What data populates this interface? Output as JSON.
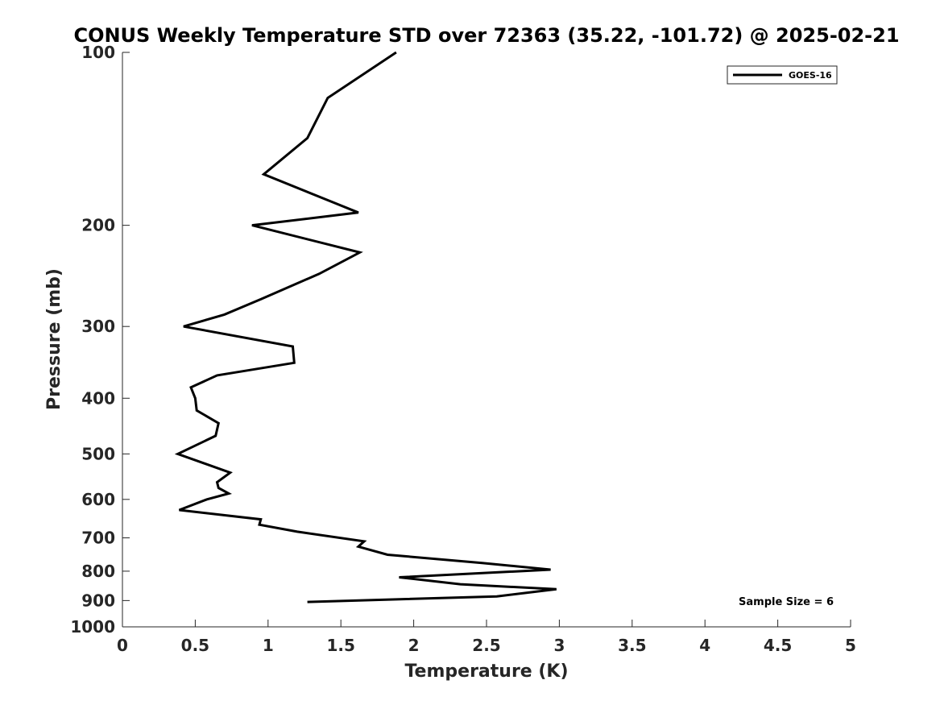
{
  "chart_data": {
    "type": "line",
    "title": "CONUS Weekly Temperature STD over 72363 (35.22, -101.72) @ 2025-02-21",
    "xlabel": "Temperature (K)",
    "ylabel": "Pressure (mb)",
    "xlim": [
      0,
      5
    ],
    "ylim": [
      100,
      1000
    ],
    "y_scale": "log",
    "y_reversed": true,
    "x_ticks": [
      "0",
      "0.5",
      "1",
      "1.5",
      "2",
      "2.5",
      "3",
      "3.5",
      "4",
      "4.5",
      "5"
    ],
    "y_ticks": [
      "100",
      "200",
      "300",
      "400",
      "500",
      "600",
      "700",
      "800",
      "900",
      "1000"
    ],
    "grid": false,
    "legend": {
      "position": "top-right",
      "entries": [
        "GOES-16"
      ]
    },
    "annotation": "Sample Size = 6",
    "series": [
      {
        "name": "GOES-16",
        "color": "#000000",
        "points": [
          [
            1.88,
            100
          ],
          [
            1.41,
            120
          ],
          [
            1.27,
            141
          ],
          [
            0.97,
            163
          ],
          [
            1.62,
            190
          ],
          [
            0.89,
            200
          ],
          [
            1.63,
            223
          ],
          [
            1.35,
            243
          ],
          [
            0.95,
            269
          ],
          [
            0.7,
            286
          ],
          [
            0.42,
            300
          ],
          [
            1.17,
            325
          ],
          [
            1.18,
            347
          ],
          [
            0.65,
            365
          ],
          [
            0.47,
            383
          ],
          [
            0.5,
            400
          ],
          [
            0.51,
            420
          ],
          [
            0.66,
            442
          ],
          [
            0.64,
            465
          ],
          [
            0.38,
            500
          ],
          [
            0.74,
            539
          ],
          [
            0.65,
            560
          ],
          [
            0.66,
            573
          ],
          [
            0.73,
            586
          ],
          [
            0.58,
            600
          ],
          [
            0.39,
            626
          ],
          [
            0.95,
            650
          ],
          [
            0.94,
            664
          ],
          [
            1.2,
            683
          ],
          [
            1.66,
            710
          ],
          [
            1.62,
            725
          ],
          [
            1.82,
            749
          ],
          [
            2.47,
            774
          ],
          [
            2.94,
            795
          ],
          [
            1.9,
            820
          ],
          [
            2.32,
            843
          ],
          [
            2.98,
            860
          ],
          [
            2.57,
            885
          ],
          [
            1.27,
            905
          ]
        ]
      }
    ]
  }
}
